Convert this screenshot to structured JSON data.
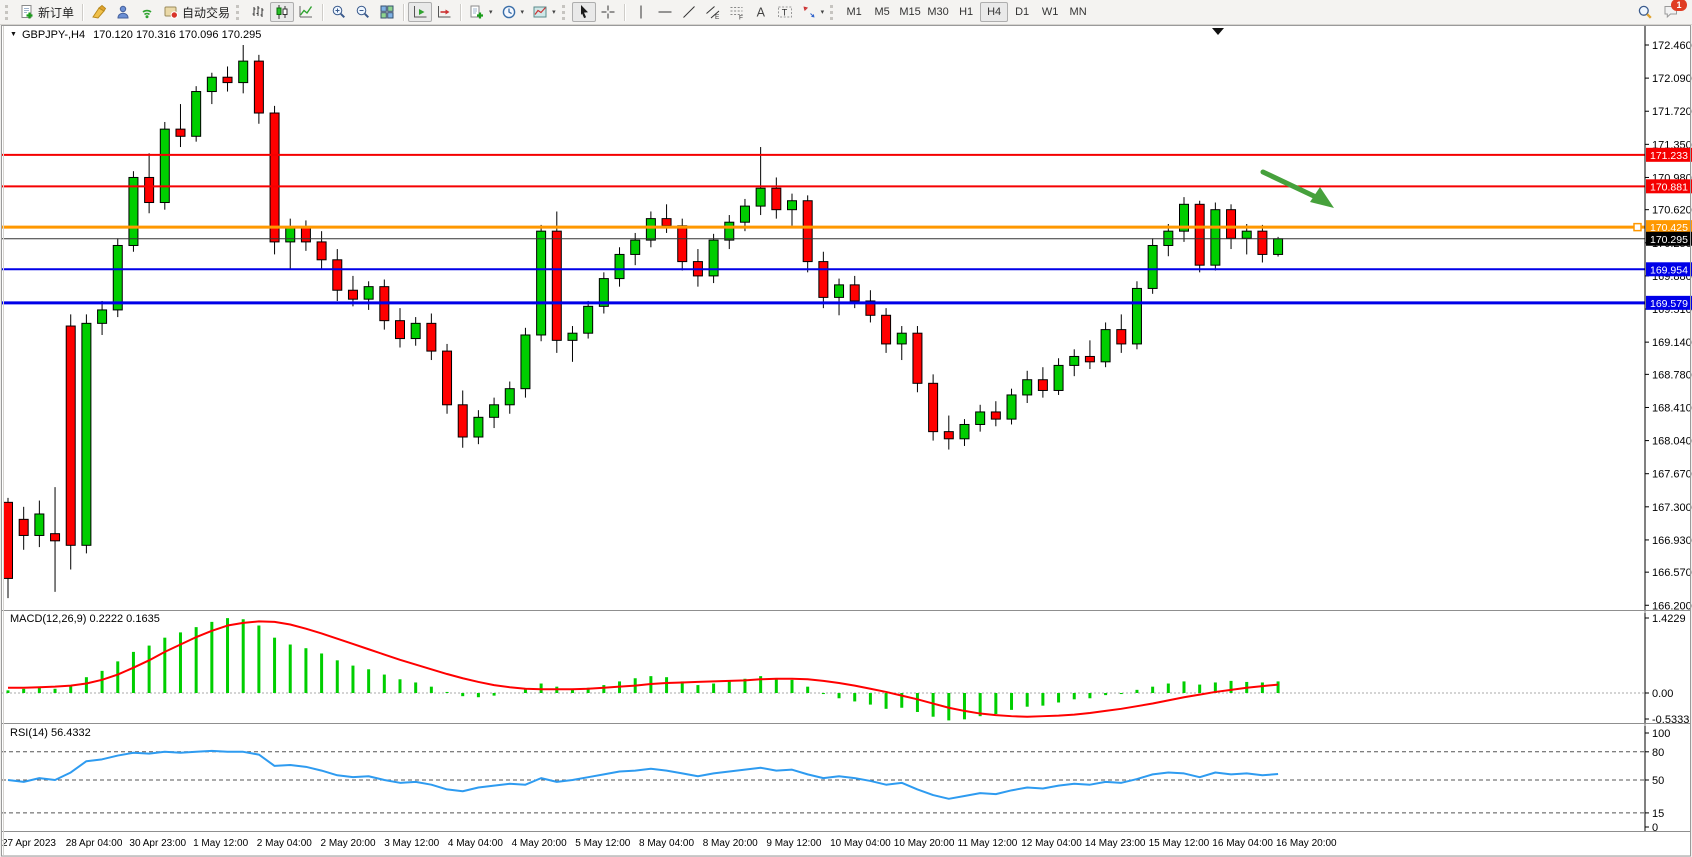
{
  "toolbar": {
    "new_order_label": "新订单",
    "auto_trading_label": "自动交易",
    "text_tool_label": "A",
    "label_tool_label": "T",
    "channel_tool_label": "E",
    "fibo_tool_label": "F",
    "timeframes": [
      "M1",
      "M5",
      "M15",
      "M30",
      "H1",
      "H4",
      "D1",
      "W1",
      "MN"
    ],
    "active_timeframe": "H4",
    "notification_count": "1"
  },
  "chart": {
    "title": "GBPJPY-,H4",
    "ohlc": "170.120 170.316 170.096 170.295"
  },
  "chart_data": {
    "type": "candlestick",
    "symbol": "GBPJPY-",
    "timeframe": "H4",
    "last_candle": {
      "open": "170.120",
      "high": "170.316",
      "low": "170.096",
      "close": "170.295"
    },
    "y_axis_ticks": [
      "172.460",
      "172.090",
      "171.720",
      "171.350",
      "170.980",
      "170.620",
      "170.250",
      "169.880",
      "169.510",
      "169.140",
      "168.780",
      "168.410",
      "168.040",
      "167.670",
      "167.300",
      "166.930",
      "166.570",
      "166.200"
    ],
    "x_axis_labels": [
      "27 Apr 2023",
      "28 Apr 04:00",
      "30 Apr 23:00",
      "1 May 12:00",
      "2 May 04:00",
      "2 May 20:00",
      "3 May 12:00",
      "4 May 04:00",
      "4 May 20:00",
      "5 May 12:00",
      "8 May 04:00",
      "8 May 20:00",
      "9 May 12:00",
      "10 May 04:00",
      "10 May 20:00",
      "11 May 12:00",
      "12 May 04:00",
      "14 May 23:00",
      "15 May 12:00",
      "16 May 04:00",
      "16 May 20:00"
    ],
    "candle_up_color": "#00CE00",
    "candle_down_color": "#FF0000",
    "candles": [
      [
        167.35,
        167.4,
        166.28,
        166.5
      ],
      [
        167.16,
        167.3,
        166.82,
        166.98
      ],
      [
        166.98,
        167.37,
        166.85,
        167.22
      ],
      [
        167.0,
        167.52,
        166.35,
        166.92
      ],
      [
        169.32,
        169.45,
        166.6,
        166.87
      ],
      [
        166.87,
        169.45,
        166.78,
        169.35
      ],
      [
        169.35,
        169.6,
        169.22,
        169.5
      ],
      [
        169.5,
        170.3,
        169.42,
        170.22
      ],
      [
        170.22,
        171.05,
        170.15,
        170.98
      ],
      [
        170.98,
        171.25,
        170.58,
        170.7
      ],
      [
        170.7,
        171.6,
        170.62,
        171.52
      ],
      [
        171.52,
        171.8,
        171.32,
        171.44
      ],
      [
        171.44,
        172.0,
        171.38,
        171.94
      ],
      [
        171.94,
        172.15,
        171.8,
        172.1
      ],
      [
        172.1,
        172.22,
        171.94,
        172.04
      ],
      [
        172.04,
        172.46,
        171.92,
        172.28
      ],
      [
        172.28,
        172.35,
        171.58,
        171.7
      ],
      [
        171.7,
        171.78,
        170.12,
        170.26
      ],
      [
        170.26,
        170.52,
        169.96,
        170.42
      ],
      [
        170.42,
        170.5,
        170.16,
        170.26
      ],
      [
        170.26,
        170.38,
        169.96,
        170.06
      ],
      [
        170.06,
        170.18,
        169.6,
        169.72
      ],
      [
        169.72,
        169.88,
        169.54,
        169.62
      ],
      [
        169.62,
        169.82,
        169.5,
        169.76
      ],
      [
        169.76,
        169.84,
        169.28,
        169.38
      ],
      [
        169.38,
        169.52,
        169.08,
        169.18
      ],
      [
        169.18,
        169.42,
        169.1,
        169.35
      ],
      [
        169.35,
        169.46,
        168.94,
        169.04
      ],
      [
        169.04,
        169.12,
        168.34,
        168.44
      ],
      [
        168.44,
        168.6,
        167.96,
        168.08
      ],
      [
        168.08,
        168.38,
        168.0,
        168.3
      ],
      [
        168.3,
        168.52,
        168.18,
        168.44
      ],
      [
        168.44,
        168.7,
        168.34,
        168.62
      ],
      [
        168.62,
        169.3,
        168.52,
        169.22
      ],
      [
        169.22,
        170.45,
        169.15,
        170.38
      ],
      [
        170.38,
        170.6,
        169.02,
        169.16
      ],
      [
        169.16,
        169.32,
        168.92,
        169.24
      ],
      [
        169.24,
        169.6,
        169.18,
        169.54
      ],
      [
        169.54,
        169.92,
        169.46,
        169.85
      ],
      [
        169.85,
        170.2,
        169.76,
        170.12
      ],
      [
        170.12,
        170.36,
        170.0,
        170.28
      ],
      [
        170.28,
        170.6,
        170.2,
        170.52
      ],
      [
        170.52,
        170.68,
        170.36,
        170.44
      ],
      [
        170.44,
        170.52,
        169.94,
        170.04
      ],
      [
        170.04,
        170.18,
        169.76,
        169.88
      ],
      [
        169.88,
        170.35,
        169.8,
        170.28
      ],
      [
        170.28,
        170.56,
        170.18,
        170.48
      ],
      [
        170.48,
        170.74,
        170.38,
        170.66
      ],
      [
        170.66,
        171.32,
        170.56,
        170.86
      ],
      [
        170.86,
        170.98,
        170.52,
        170.62
      ],
      [
        170.62,
        170.8,
        170.44,
        170.72
      ],
      [
        170.72,
        170.78,
        169.92,
        170.04
      ],
      [
        170.04,
        170.15,
        169.52,
        169.64
      ],
      [
        169.64,
        169.85,
        169.44,
        169.78
      ],
      [
        169.78,
        169.88,
        169.52,
        169.6
      ],
      [
        169.6,
        169.72,
        169.36,
        169.44
      ],
      [
        169.44,
        169.52,
        169.02,
        169.12
      ],
      [
        169.12,
        169.32,
        168.94,
        169.24
      ],
      [
        169.24,
        169.32,
        168.58,
        168.68
      ],
      [
        168.68,
        168.78,
        168.04,
        168.14
      ],
      [
        168.14,
        168.32,
        167.94,
        168.06
      ],
      [
        168.06,
        168.28,
        167.98,
        168.22
      ],
      [
        168.22,
        168.44,
        168.14,
        168.36
      ],
      [
        168.36,
        168.48,
        168.2,
        168.28
      ],
      [
        168.28,
        168.62,
        168.22,
        168.55
      ],
      [
        168.55,
        168.82,
        168.46,
        168.72
      ],
      [
        168.72,
        168.86,
        168.52,
        168.6
      ],
      [
        168.6,
        168.96,
        168.55,
        168.88
      ],
      [
        168.88,
        169.06,
        168.76,
        168.98
      ],
      [
        168.98,
        169.16,
        168.84,
        168.92
      ],
      [
        168.92,
        169.36,
        168.86,
        169.28
      ],
      [
        169.28,
        169.45,
        169.02,
        169.12
      ],
      [
        169.12,
        169.82,
        169.06,
        169.74
      ],
      [
        169.74,
        170.3,
        169.68,
        170.22
      ],
      [
        170.22,
        170.46,
        170.1,
        170.38
      ],
      [
        170.38,
        170.76,
        170.26,
        170.68
      ],
      [
        170.68,
        170.72,
        169.92,
        170.0
      ],
      [
        170.0,
        170.7,
        169.94,
        170.62
      ],
      [
        170.62,
        170.68,
        170.18,
        170.3
      ],
      [
        170.3,
        170.46,
        170.12,
        170.38
      ],
      [
        170.38,
        170.45,
        170.03,
        170.12
      ],
      [
        170.12,
        170.316,
        170.096,
        170.295
      ]
    ],
    "hlines": [
      {
        "price": 171.233,
        "color": "#F50000",
        "width": 2,
        "label": "171.233"
      },
      {
        "price": 170.881,
        "color": "#F50000",
        "width": 2,
        "label": "170.881"
      },
      {
        "price": 170.425,
        "color": "#FF9800",
        "width": 3,
        "label": "170.425"
      },
      {
        "price": 170.295,
        "color": "#333333",
        "width": 1,
        "label": "170.295",
        "label_bg": "#000000"
      },
      {
        "price": 169.954,
        "color": "#0000E8",
        "width": 2,
        "label": "169.954"
      },
      {
        "price": 169.579,
        "color": "#0000E8",
        "width": 3,
        "label": "169.579"
      }
    ],
    "indicators": {
      "macd": {
        "label": "MACD(12,26,9) 0.2222 0.1635",
        "axis_ticks": [
          "1.4229",
          "0.00",
          "-0.5333"
        ],
        "histogram_color": "#00CE00",
        "signal_color": "#FF0000",
        "histogram": [
          0.05,
          0.08,
          0.1,
          0.08,
          0.15,
          0.3,
          0.42,
          0.6,
          0.78,
          0.9,
          1.05,
          1.15,
          1.25,
          1.35,
          1.42,
          1.4,
          1.28,
          1.05,
          0.92,
          0.85,
          0.75,
          0.62,
          0.52,
          0.45,
          0.35,
          0.26,
          0.2,
          0.12,
          0.02,
          -0.06,
          -0.08,
          -0.05,
          0.0,
          0.08,
          0.18,
          0.12,
          0.08,
          0.1,
          0.15,
          0.22,
          0.28,
          0.32,
          0.3,
          0.22,
          0.15,
          0.18,
          0.22,
          0.27,
          0.32,
          0.28,
          0.25,
          0.12,
          -0.02,
          -0.1,
          -0.16,
          -0.22,
          -0.3,
          -0.28,
          -0.36,
          -0.45,
          -0.52,
          -0.5,
          -0.44,
          -0.4,
          -0.32,
          -0.26,
          -0.24,
          -0.18,
          -0.12,
          -0.1,
          -0.04,
          -0.02,
          0.06,
          0.12,
          0.18,
          0.22,
          0.16,
          0.2,
          0.23,
          0.21,
          0.2,
          0.22
        ],
        "signal": [
          0.1,
          0.1,
          0.11,
          0.12,
          0.14,
          0.18,
          0.25,
          0.35,
          0.48,
          0.62,
          0.78,
          0.92,
          1.06,
          1.18,
          1.28,
          1.33,
          1.36,
          1.35,
          1.3,
          1.22,
          1.13,
          1.03,
          0.93,
          0.83,
          0.73,
          0.63,
          0.54,
          0.45,
          0.36,
          0.28,
          0.21,
          0.15,
          0.11,
          0.08,
          0.07,
          0.07,
          0.07,
          0.08,
          0.1,
          0.12,
          0.14,
          0.17,
          0.19,
          0.2,
          0.21,
          0.22,
          0.23,
          0.24,
          0.26,
          0.27,
          0.27,
          0.26,
          0.23,
          0.19,
          0.14,
          0.08,
          0.02,
          -0.05,
          -0.12,
          -0.2,
          -0.28,
          -0.34,
          -0.39,
          -0.42,
          -0.44,
          -0.45,
          -0.44,
          -0.43,
          -0.41,
          -0.38,
          -0.34,
          -0.3,
          -0.25,
          -0.2,
          -0.14,
          -0.08,
          -0.03,
          0.02,
          0.06,
          0.1,
          0.13,
          0.16
        ]
      },
      "rsi": {
        "label": "RSI(14) 56.4332",
        "axis_ticks": [
          "100",
          "80",
          "50",
          "15",
          "0"
        ],
        "levels": [
          80,
          50,
          15
        ],
        "color": "#2E9BF0",
        "values": [
          50,
          48,
          52,
          50,
          58,
          70,
          72,
          76,
          79,
          78,
          80,
          79,
          80,
          81,
          80,
          80,
          77,
          65,
          66,
          64,
          60,
          55,
          53,
          54,
          50,
          47,
          48,
          45,
          40,
          38,
          42,
          44,
          46,
          45,
          52,
          48,
          50,
          53,
          56,
          59,
          60,
          62,
          60,
          57,
          54,
          57,
          59,
          61,
          63,
          60,
          61,
          56,
          52,
          54,
          52,
          49,
          45,
          47,
          40,
          34,
          30,
          33,
          36,
          35,
          39,
          42,
          41,
          44,
          46,
          45,
          48,
          47,
          51,
          56,
          58,
          57,
          53,
          58,
          56,
          57,
          55,
          56.4
        ]
      }
    },
    "annotation_arrow": {
      "color": "#46A13C"
    }
  }
}
